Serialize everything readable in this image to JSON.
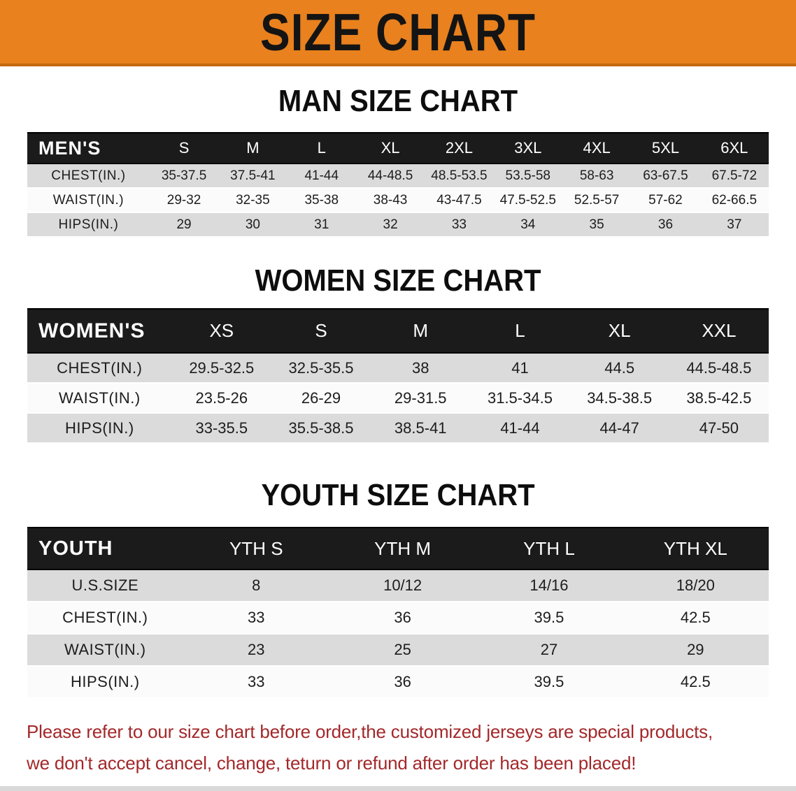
{
  "banner": {
    "title": "SIZE CHART",
    "bg_color": "#e8811e",
    "text_color": "#141414"
  },
  "sections": [
    {
      "title": "MAN SIZE CHART",
      "table": {
        "header_label": "MEN'S",
        "columns": [
          "S",
          "M",
          "L",
          "XL",
          "2XL",
          "3XL",
          "4XL",
          "5XL",
          "6XL"
        ],
        "rows": [
          {
            "label": "CHEST(IN.)",
            "values": [
              "35-37.5",
              "37.5-41",
              "41-44",
              "44-48.5",
              "48.5-53.5",
              "53.5-58",
              "58-63",
              "63-67.5",
              "67.5-72"
            ]
          },
          {
            "label": "WAIST(IN.)",
            "values": [
              "29-32",
              "32-35",
              "35-38",
              "38-43",
              "43-47.5",
              "47.5-52.5",
              "52.5-57",
              "57-62",
              "62-66.5"
            ]
          },
          {
            "label": "HIPS(IN.)",
            "values": [
              "29",
              "30",
              "31",
              "32",
              "33",
              "34",
              "35",
              "36",
              "37"
            ]
          }
        ]
      }
    },
    {
      "title": "WOMEN SIZE CHART",
      "table": {
        "header_label": "WOMEN'S",
        "columns": [
          "XS",
          "S",
          "M",
          "L",
          "XL",
          "XXL"
        ],
        "rows": [
          {
            "label": "CHEST(IN.)",
            "values": [
              "29.5-32.5",
              "32.5-35.5",
              "38",
              "41",
              "44.5",
              "44.5-48.5"
            ]
          },
          {
            "label": "WAIST(IN.)",
            "values": [
              "23.5-26",
              "26-29",
              "29-31.5",
              "31.5-34.5",
              "34.5-38.5",
              "38.5-42.5"
            ]
          },
          {
            "label": "HIPS(IN.)",
            "values": [
              "33-35.5",
              "35.5-38.5",
              "38.5-41",
              "41-44",
              "44-47",
              "47-50"
            ]
          }
        ]
      }
    },
    {
      "title": "YOUTH SIZE CHART",
      "table": {
        "header_label": "YOUTH",
        "columns": [
          "YTH S",
          "YTH M",
          "YTH L",
          "YTH XL"
        ],
        "rows": [
          {
            "label": "U.S.SIZE",
            "values": [
              "8",
              "10/12",
              "14/16",
              "18/20"
            ]
          },
          {
            "label": "CHEST(IN.)",
            "values": [
              "33",
              "36",
              "39.5",
              "42.5"
            ]
          },
          {
            "label": "WAIST(IN.)",
            "values": [
              "23",
              "25",
              "27",
              "29"
            ]
          },
          {
            "label": "HIPS(IN.)",
            "values": [
              "33",
              "36",
              "39.5",
              "42.5"
            ]
          }
        ]
      }
    }
  ],
  "disclaimer": {
    "line1": "Please refer to our size chart before order,the customized jerseys are special products,",
    "line2": "we don't accept cancel, change, teturn or refund after order has been placed!",
    "color": "#a3282a"
  },
  "colors": {
    "banner_bg": "#e8811e",
    "table_header_bg": "#1b1b1b",
    "row_gray": "#dbdbdb",
    "row_white": "#fbfbfb",
    "disclaimer_red": "#a3282a"
  }
}
